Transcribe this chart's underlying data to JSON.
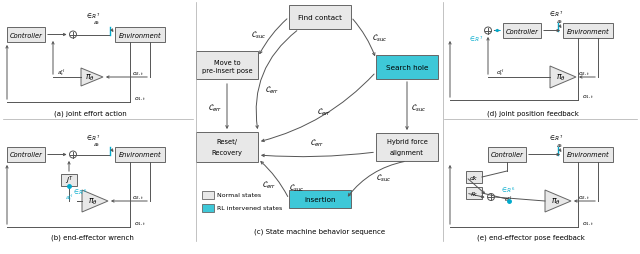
{
  "box_normal_color": "#e8e8e8",
  "box_normal_color2": "#d8d8d8",
  "box_rl_color": "#3ec8d8",
  "border_color": "#888888",
  "arrow_color": "#555555",
  "cyan_color": "#00aacc",
  "text_color": "#111111",
  "italic_color": "#333333",
  "subfig_a_label": "(a) joint effort action",
  "subfig_b_label": "(b) end-effector wrench",
  "subfig_c_label": "(c) State machine behavior sequence",
  "subfig_d_label": "(d) joint position feedback",
  "subfig_e_label": "(e) end-effector pose feedback",
  "legend_normal": "Normal states",
  "legend_rl": "RL intervened states"
}
